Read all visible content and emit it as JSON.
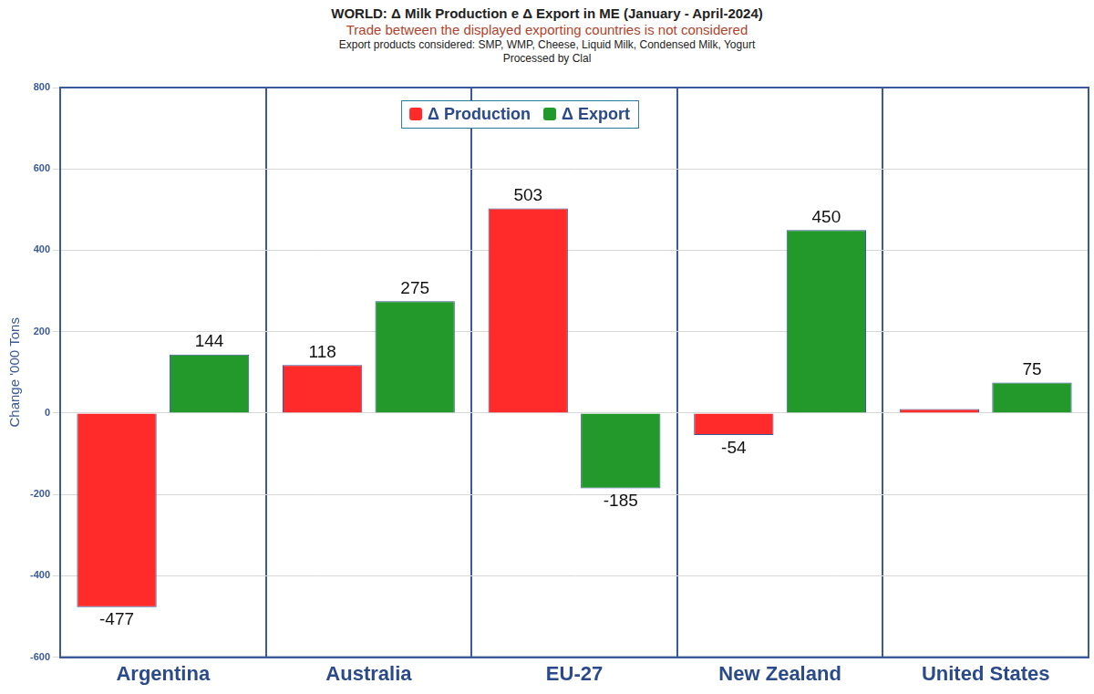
{
  "chart_data": {
    "type": "bar",
    "title": "WORLD: Δ Milk Production e Δ Export in ME (January - April-2024)",
    "subtitle": "Trade between the displayed exporting countries is not considered",
    "annotations": [
      "Export products considered: SMP, WMP, Cheese, Liquid Milk, Condensed Milk, Yogurt",
      "Processed by Clal"
    ],
    "ylabel": "Change '000 Tons",
    "categories": [
      "Argentina",
      "Australia",
      "EU-27",
      "New Zealand",
      "United States"
    ],
    "series": [
      {
        "name": "Δ Production",
        "color": "#ff2a2a",
        "values": [
          -477,
          118,
          503,
          -54,
          10
        ],
        "value_labels": [
          "-477",
          "118",
          "503",
          "-54",
          null
        ]
      },
      {
        "name": "Δ Export",
        "color": "#22992a",
        "values": [
          144,
          275,
          -185,
          450,
          75
        ]
      }
    ],
    "ylim": [
      -600,
      800
    ],
    "yticks": [
      -600,
      -400,
      -200,
      0,
      200,
      400,
      600,
      800
    ],
    "grid": true,
    "legend": "top",
    "data_labels": true
  }
}
